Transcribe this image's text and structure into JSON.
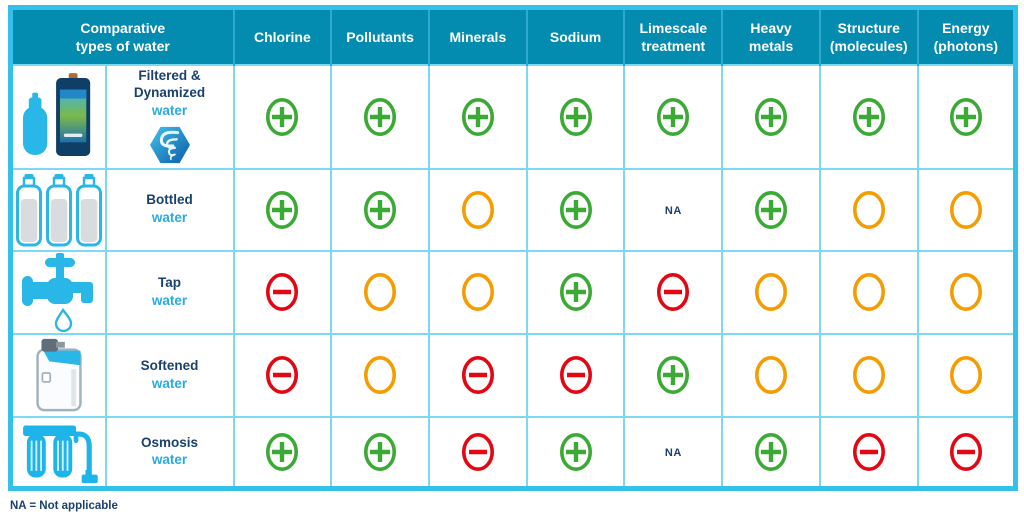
{
  "table": {
    "corner_header": "Comparative\ntypes of water",
    "columns": [
      "Chlorine",
      "Pollutants",
      "Minerals",
      "Sodium",
      "Limescale\ntreatment",
      "Heavy\nmetals",
      "Structure\n(molecules)",
      "Energy\n(photons)"
    ],
    "na_label": "NA",
    "footnote": "NA = Not applicable",
    "rows": [
      {
        "icon": "filter-dynamized-icon",
        "label": "Filtered &\nDynamized",
        "sublabel": "water",
        "badge": "dynamized-swirl-icon",
        "cells": [
          "plus",
          "plus",
          "plus",
          "plus",
          "plus",
          "plus",
          "plus",
          "plus"
        ]
      },
      {
        "icon": "bottled-water-icon",
        "label": "Bottled",
        "sublabel": "water",
        "cells": [
          "plus",
          "plus",
          "circle",
          "plus",
          "na",
          "plus",
          "circle",
          "circle"
        ]
      },
      {
        "icon": "tap-icon",
        "label": "Tap",
        "sublabel": "water",
        "cells": [
          "minus",
          "circle",
          "circle",
          "plus",
          "minus",
          "circle",
          "circle",
          "circle"
        ]
      },
      {
        "icon": "water-softener-icon",
        "label": "Softened",
        "sublabel": "water",
        "cells": [
          "minus",
          "circle",
          "minus",
          "minus",
          "plus",
          "circle",
          "circle",
          "circle"
        ]
      },
      {
        "icon": "osmosis-icon",
        "label": "Osmosis",
        "sublabel": "water",
        "cells": [
          "plus",
          "plus",
          "minus",
          "plus",
          "na",
          "plus",
          "minus",
          "minus"
        ]
      }
    ]
  },
  "colors": {
    "header_bg": "#048bb0",
    "outer_border": "#33c0ea",
    "grid_line": "#7cd9f4",
    "navy_text": "#1a406e",
    "cyan_text": "#29abe2",
    "plus_green": "#3aaa35",
    "minus_red": "#e30613",
    "circle_orange": "#f59c00"
  },
  "chart_data": {
    "type": "table",
    "title": "Comparative types of water",
    "columns": [
      "Chlorine",
      "Pollutants",
      "Minerals",
      "Sodium",
      "Limescale treatment",
      "Heavy metals",
      "Structure (molecules)",
      "Energy (photons)"
    ],
    "rows": [
      "Filtered & Dynamized water",
      "Bottled water",
      "Tap water",
      "Softened water",
      "Osmosis water"
    ],
    "values": [
      [
        "plus",
        "plus",
        "plus",
        "plus",
        "plus",
        "plus",
        "plus",
        "plus"
      ],
      [
        "plus",
        "plus",
        "circle",
        "plus",
        "NA",
        "plus",
        "circle",
        "circle"
      ],
      [
        "minus",
        "circle",
        "circle",
        "plus",
        "minus",
        "circle",
        "circle",
        "circle"
      ],
      [
        "minus",
        "circle",
        "minus",
        "minus",
        "plus",
        "circle",
        "circle",
        "circle"
      ],
      [
        "plus",
        "plus",
        "minus",
        "plus",
        "NA",
        "plus",
        "minus",
        "minus"
      ]
    ],
    "symbol_key": {
      "plus": "green circled plus",
      "minus": "red circled minus",
      "circle": "orange empty circle",
      "NA": "Not applicable"
    },
    "footnote": "NA = Not applicable"
  }
}
